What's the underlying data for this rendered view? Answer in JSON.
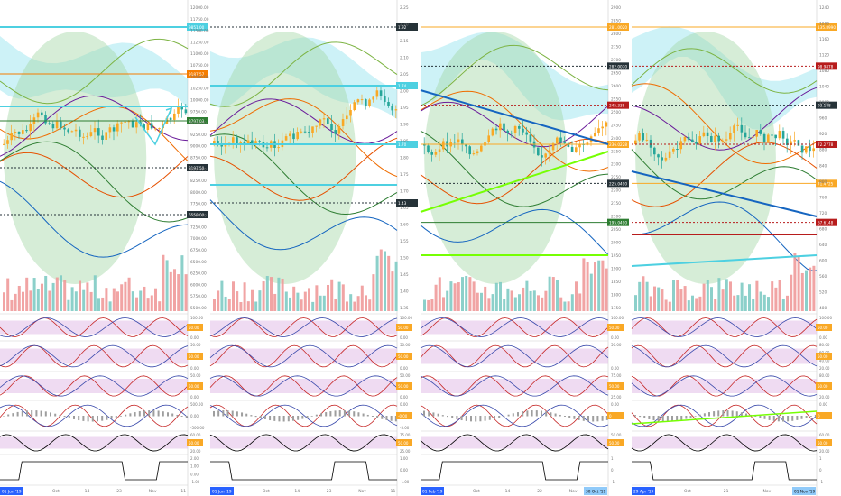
{
  "panels": [
    {
      "id": "btc",
      "axis_ticks": [
        "12000.00",
        "11750.00",
        "11500.00",
        "11250.00",
        "11000.00",
        "10750.00",
        "10500.00",
        "10250.00",
        "10000.00",
        "9750.00",
        "9500.00",
        "9250.00",
        "9000.00",
        "8750.00",
        "8500.00",
        "8250.00",
        "8000.00",
        "7750.00",
        "7500.00",
        "7250.00",
        "7000.00",
        "6750.00",
        "6500.00",
        "6250.00",
        "6000.00",
        "5750.00",
        "5500.00"
      ],
      "price_badges": [
        {
          "label": "9851.00",
          "color": "#4dd0e1"
        },
        {
          "label": "9187.57",
          "color": "#f57c00"
        },
        {
          "label": "8797.03",
          "color": "#2e7d32"
        },
        {
          "label": "8197.50",
          "color": "#263238"
        },
        {
          "label": "6558.00",
          "color": "#263238"
        }
      ],
      "indicator_labels": [
        [
          "100.00",
          "50.00",
          "0.00"
        ],
        [
          "50.00",
          "0.00"
        ],
        [
          "50.00",
          "0.00"
        ],
        [
          "500.00",
          "0.00",
          "-500.00"
        ],
        [
          "60.00",
          "40.00",
          "20.00"
        ],
        [
          "2.00",
          "1.00",
          "0.00",
          "-1.00"
        ]
      ],
      "indicator_badges": [
        "50.00",
        "50.00",
        "50.00",
        "",
        "50.00",
        ""
      ],
      "time_labels": [
        "Oct",
        "14",
        "23",
        "Nov",
        "11"
      ],
      "start_date": "01 Jun '19"
    },
    {
      "id": "xrp",
      "axis_ticks": [
        "2.25",
        "2.20",
        "2.15",
        "2.10",
        "2.05",
        "2.00",
        "1.95",
        "1.90",
        "1.85",
        "1.80",
        "1.75",
        "1.70",
        "1.65",
        "1.60",
        "1.55",
        "1.50",
        "1.45",
        "1.40",
        "1.35"
      ],
      "price_badges": [
        {
          "label": "1.92",
          "color": "#263238"
        },
        {
          "label": "1.74",
          "color": "#4dd0e1"
        },
        {
          "label": "1.70",
          "color": "#4dd0e1"
        },
        {
          "label": "1.43",
          "color": "#263238"
        }
      ],
      "indicator_labels": [
        [
          "100.00",
          "50.00",
          "0.00"
        ],
        [
          "50.00",
          "0.00"
        ],
        [
          "50.00",
          "0.00"
        ],
        [
          "0.00",
          "-5.00"
        ],
        [
          "75.00",
          "50.00",
          "25.00"
        ],
        [
          "1.00",
          "0.00",
          "-1.00"
        ]
      ],
      "indicator_badges": [
        "50.00",
        "50.00",
        "50.00",
        "-0.00",
        "50.00",
        ""
      ],
      "time_labels": [
        "Oct",
        "14",
        "23",
        "Nov",
        "11"
      ],
      "start_date": "01 Jun '19"
    },
    {
      "id": "eth",
      "axis_ticks": [
        "2900",
        "2850",
        "2800",
        "2750",
        "2700",
        "2650",
        "2600",
        "2550",
        "2500",
        "2450",
        "2400",
        "2350",
        "2300",
        "2250",
        "2200",
        "2150",
        "2100",
        "2050",
        "2000",
        "1950",
        "1900",
        "1850",
        "1800",
        "1750"
      ],
      "price_badges": [
        {
          "label": "281.0020",
          "color": "#f9a825"
        },
        {
          "label": "282.0070",
          "color": "#263238"
        },
        {
          "label": "245.338",
          "color": "#b71c1c"
        },
        {
          "label": "236.0228",
          "color": "#f9a825"
        },
        {
          "label": "225.0490",
          "color": "#263238"
        },
        {
          "label": "195.0490",
          "color": "#2e7d32"
        }
      ],
      "indicator_labels": [
        [
          "100.00",
          "50.00",
          "0.00"
        ],
        [
          "50.00",
          "0.00"
        ],
        [
          "75.00",
          "50.00",
          "25.00"
        ],
        [
          "0.00"
        ],
        [
          "50.00"
        ],
        [
          "1",
          "0",
          "-1"
        ]
      ],
      "indicator_badges": [
        "50.00",
        "",
        "50.00",
        "0",
        "50.00",
        ""
      ],
      "time_labels": [
        "Oct",
        "14",
        "22",
        "Nov",
        "11"
      ],
      "start_date": "01 Feb '19",
      "end_date": "30 Oct '19"
    },
    {
      "id": "ltc",
      "axis_ticks": [
        "1240",
        "1200",
        "1160",
        "1120",
        "1080",
        "1040",
        "1000",
        "960",
        "920",
        "880",
        "840",
        "800",
        "760",
        "720",
        "680",
        "640",
        "600",
        "560",
        "520",
        "480"
      ],
      "price_badges": [
        {
          "label": "135.8990",
          "color": "#f9a825"
        },
        {
          "label": "98.9878",
          "color": "#b71c1c"
        },
        {
          "label": "93.188",
          "color": "#263238"
        },
        {
          "label": "72.2778",
          "color": "#b71c1c"
        },
        {
          "label": "71.4725",
          "color": "#f9a825"
        },
        {
          "label": "67.6148",
          "color": "#b71c1c"
        }
      ],
      "indicator_labels": [
        [
          "100.00",
          "50.00",
          "0.00"
        ],
        [
          "80.00",
          "60.00",
          "40.00",
          "20.00"
        ],
        [
          "80.00",
          "60.00",
          "20.00"
        ],
        [
          "0.00"
        ],
        [
          "60.00",
          "40.00",
          "20.00"
        ],
        [
          "1",
          "0",
          "-1"
        ]
      ],
      "indicator_badges": [
        "50.00",
        "50.00",
        "50.00",
        "0",
        "50.00",
        ""
      ],
      "time_labels": [
        "Oct",
        "21",
        "Nov",
        "11"
      ],
      "start_date": "29 Apr '19",
      "end_date": "01 Nov '19"
    }
  ],
  "colors": {
    "cyan": "#4dd0e1",
    "green_cloud": "#a5d6a7",
    "candle_up": "#f9a825",
    "candle_down": "#26a69a",
    "volume": "#ef9a9a",
    "volume_up": "#80cbc4",
    "band": "#e1bee7"
  }
}
